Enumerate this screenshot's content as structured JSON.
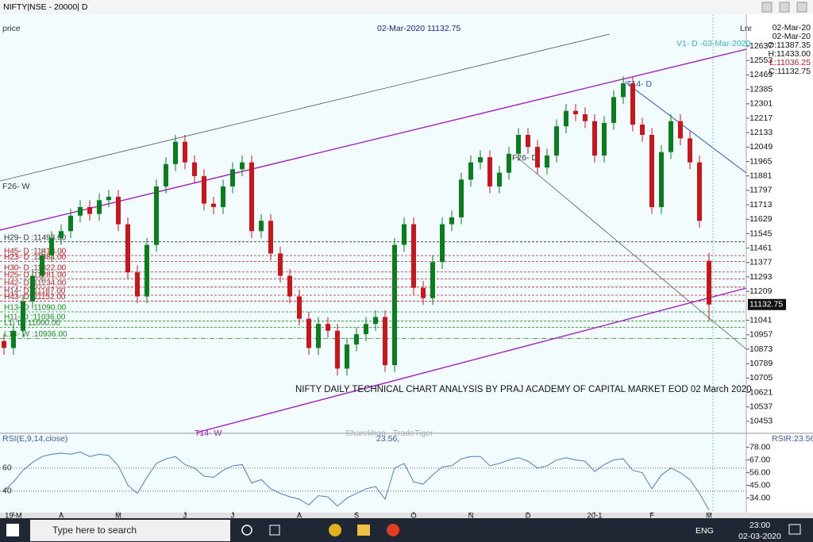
{
  "window": {
    "title": "NIFTY|NSE - 20000| D"
  },
  "chart_data": [
    {
      "type": "candlestick",
      "y_label": "price",
      "header": "02-Mar-2020 11132.75",
      "scale": "Lnr",
      "info": [
        "02-Mar-20",
        "02-Mar-20",
        "O:11387.35",
        "H:11433.00",
        "L:11036.25",
        "C:11132.75"
      ],
      "footnote": "NIFTY DAILY TECHNICAL CHART ANALYSIS BY PRAJ ACADEMY OF CAPITAL MARKET EOD 02 March 2020",
      "watermark": "Sharekhan - TradeTiger",
      "annotations": [
        "F26- W",
        "T14- D",
        "F26- D",
        "T14- W",
        "V1- D -03-Mar-2020"
      ],
      "categories": [
        null,
        "19-M",
        null,
        null,
        null,
        null,
        "A",
        null,
        null,
        null,
        null,
        null,
        "M",
        null,
        null,
        null,
        null,
        null,
        null,
        "J",
        null,
        null,
        null,
        null,
        "J",
        null,
        null,
        null,
        null,
        null,
        null,
        "A",
        null,
        null,
        null,
        null,
        null,
        "S",
        null,
        null,
        null,
        null,
        null,
        "O",
        null,
        null,
        null,
        null,
        null,
        "N",
        null,
        null,
        null,
        null,
        null,
        "D",
        null,
        null,
        null,
        null,
        null,
        null,
        "20-1",
        null,
        null,
        null,
        null,
        null,
        "F",
        null,
        null,
        null,
        null,
        null,
        "M"
      ],
      "open": [
        10920,
        10880,
        10980,
        11150,
        11300,
        11420,
        11520,
        11560,
        11650,
        11700,
        11660,
        11740,
        11760,
        11600,
        11320,
        11180,
        11480,
        11820,
        11950,
        12080,
        11960,
        11880,
        11720,
        11700,
        11820,
        11920,
        11960,
        11560,
        11620,
        11430,
        11300,
        11180,
        11050,
        10880,
        11020,
        10980,
        10760,
        10900,
        10960,
        11020,
        11060,
        10780,
        11480,
        11600,
        11230,
        11170,
        11380,
        11600,
        11640,
        11860,
        11960,
        11990,
        11820,
        11900,
        12010,
        12120,
        12050,
        11930,
        12000,
        12170,
        12260,
        12240,
        12200,
        12000,
        12190,
        12340,
        12420,
        12180,
        12120,
        11700,
        12020,
        12200,
        12100,
        11960,
        11387.35
      ],
      "high": [
        10960,
        11020,
        11190,
        11340,
        11460,
        11560,
        11600,
        11690,
        11740,
        11740,
        11780,
        11800,
        11800,
        11640,
        11360,
        11520,
        11860,
        11990,
        12120,
        12120,
        12000,
        11920,
        11760,
        11860,
        11960,
        12000,
        12000,
        11660,
        11660,
        11470,
        11340,
        11220,
        11090,
        11060,
        11060,
        11020,
        10940,
        11000,
        11060,
        11100,
        11100,
        11520,
        11640,
        11640,
        11270,
        11420,
        11640,
        11680,
        11900,
        12000,
        12030,
        12030,
        11940,
        12050,
        12160,
        12160,
        12090,
        12040,
        12210,
        12300,
        12300,
        12280,
        12240,
        12230,
        12380,
        12460,
        12460,
        12220,
        12160,
        12060,
        12240,
        12240,
        12140,
        12000,
        11433
      ],
      "low": [
        10840,
        10840,
        10940,
        11110,
        11260,
        11380,
        11480,
        11520,
        11610,
        11620,
        11620,
        11700,
        11560,
        11280,
        11140,
        11140,
        11440,
        11780,
        11910,
        11920,
        11840,
        11680,
        11660,
        11660,
        11780,
        11880,
        11520,
        11520,
        11390,
        11260,
        11140,
        11010,
        10840,
        10840,
        10940,
        10720,
        10720,
        10860,
        10920,
        10980,
        10740,
        10740,
        11440,
        11190,
        11130,
        11130,
        11340,
        11560,
        11600,
        11820,
        11920,
        11780,
        11780,
        11860,
        11970,
        12010,
        11890,
        11890,
        11960,
        12130,
        12200,
        12160,
        11960,
        11960,
        12150,
        12300,
        12140,
        12080,
        11660,
        11660,
        11980,
        12060,
        11920,
        11580,
        11036.25
      ],
      "close": [
        10880,
        10980,
        11150,
        11300,
        11420,
        11520,
        11560,
        11650,
        11700,
        11660,
        11740,
        11760,
        11600,
        11320,
        11180,
        11480,
        11820,
        11950,
        12080,
        11960,
        11880,
        11720,
        11700,
        11820,
        11920,
        11960,
        11560,
        11620,
        11430,
        11300,
        11180,
        11050,
        10880,
        11020,
        10980,
        10760,
        10900,
        10960,
        11020,
        11060,
        10780,
        11480,
        11600,
        11230,
        11170,
        11380,
        11600,
        11640,
        11860,
        11960,
        11990,
        11820,
        11900,
        12010,
        12120,
        12050,
        11930,
        12000,
        12170,
        12260,
        12240,
        12200,
        12000,
        12190,
        12340,
        12420,
        12180,
        12120,
        11700,
        12020,
        12200,
        12100,
        11960,
        11620,
        11132.75
      ],
      "up_color": "#0b7d1e",
      "down_color": "#c8161d",
      "ylim": [
        10388,
        12822
      ],
      "yticks": [
        12637,
        12553,
        12469,
        12385,
        12301,
        12217,
        12133,
        12049,
        11965,
        11881,
        11797,
        11713,
        11629,
        11545,
        11461,
        11377,
        11293,
        11209,
        11041,
        10957,
        10873,
        10789,
        10705,
        10621,
        10537,
        10453
      ],
      "levels": [
        {
          "label": "H29- D :11498.00",
          "value": 11498,
          "color": "#333333"
        },
        {
          "label": "H45- D :11418.00",
          "value": 11418,
          "color": "#b22222"
        },
        {
          "label": "H23- D :11384.00",
          "value": 11384,
          "color": "#b22222"
        },
        {
          "label": "H30- D :11322.00",
          "value": 11322,
          "color": "#b22222"
        },
        {
          "label": "H25- D :11281.00",
          "value": 11281,
          "color": "#b22222"
        },
        {
          "label": "H42- D :11234.00",
          "value": 11234,
          "color": "#b22222"
        },
        {
          "label": "H14- D :11187.00",
          "value": 11187,
          "color": "#b22222"
        },
        {
          "label": "H43- D :11152.00",
          "value": 11152,
          "color": "#b22222"
        },
        {
          "label": "H13- D :11090.00",
          "value": 11090,
          "color": "#1a8a1a"
        },
        {
          "label": "H11- D :11036.00",
          "value": 11036,
          "color": "#1a8a1a"
        },
        {
          "label": "L1- D :11000.00",
          "value": 11000,
          "color": "#1a8a1a"
        },
        {
          "label": "L14- W :10936.00",
          "value": 10936,
          "color": "#1a8a1a"
        }
      ]
    },
    {
      "type": "line",
      "title": "RSI(E,9,14,close)",
      "last_label": "23.56,",
      "right_label": "RSIR:23.56",
      "values": [
        40,
        48,
        58,
        65,
        70,
        72,
        73,
        72,
        74,
        70,
        72,
        71,
        62,
        45,
        38,
        52,
        64,
        68,
        70,
        63,
        60,
        53,
        52,
        58,
        62,
        63,
        47,
        50,
        42,
        38,
        35,
        33,
        28,
        36,
        35,
        27,
        34,
        38,
        42,
        44,
        33,
        60,
        64,
        48,
        46,
        54,
        61,
        62,
        68,
        70,
        70,
        62,
        64,
        67,
        69,
        66,
        60,
        62,
        67,
        69,
        67,
        66,
        57,
        63,
        67,
        68,
        58,
        56,
        42,
        54,
        60,
        56,
        50,
        38,
        23.56
      ],
      "color": "#4f7fbf",
      "ylim": [
        22,
        89.5
      ],
      "yticks": [
        {
          "value": 78,
          "label": "78.00"
        },
        {
          "value": 67,
          "label": "67.00"
        },
        {
          "value": 56,
          "label": "56.00"
        },
        {
          "value": 45,
          "label": "45.00"
        },
        {
          "value": 34,
          "label": "34.00"
        }
      ],
      "guide_lines": [
        60,
        40
      ]
    }
  ],
  "taskbar": {
    "search": "Type here to search",
    "language": "ENG",
    "time": "23:00",
    "date": "02-03-2020"
  }
}
